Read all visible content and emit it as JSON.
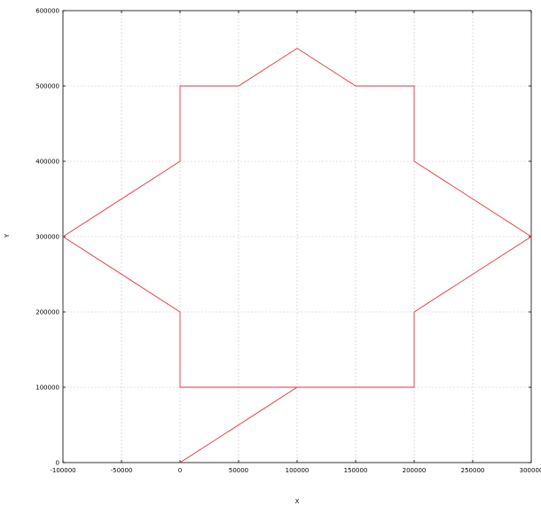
{
  "chart_data": {
    "type": "line",
    "title": "",
    "xlabel": "X",
    "ylabel": "Y",
    "xlim": [
      -100000,
      300000
    ],
    "ylim": [
      0,
      600000
    ],
    "x_ticks": [
      -100000,
      -50000,
      0,
      50000,
      100000,
      150000,
      200000,
      250000,
      300000
    ],
    "x_tick_labels": [
      "-100000",
      "-50000",
      "0",
      "50000",
      "100000",
      "150000",
      "200000",
      "250000",
      "300000"
    ],
    "y_ticks": [
      0,
      100000,
      200000,
      300000,
      400000,
      500000,
      600000
    ],
    "y_tick_labels": [
      "0",
      "100000",
      "200000",
      "300000",
      "400000",
      "500000",
      "600000"
    ],
    "grid": true,
    "series": [
      {
        "color": "#e8323c",
        "x": [
          0,
          100000,
          200000,
          200000,
          300000,
          200000,
          200000,
          150000,
          100000,
          50000,
          0,
          0,
          -100000,
          0,
          0,
          100000
        ],
        "y": [
          0,
          100000,
          100000,
          200000,
          300000,
          400000,
          500000,
          500000,
          550000,
          500000,
          500000,
          400000,
          300000,
          200000,
          100000,
          100000
        ]
      }
    ]
  }
}
